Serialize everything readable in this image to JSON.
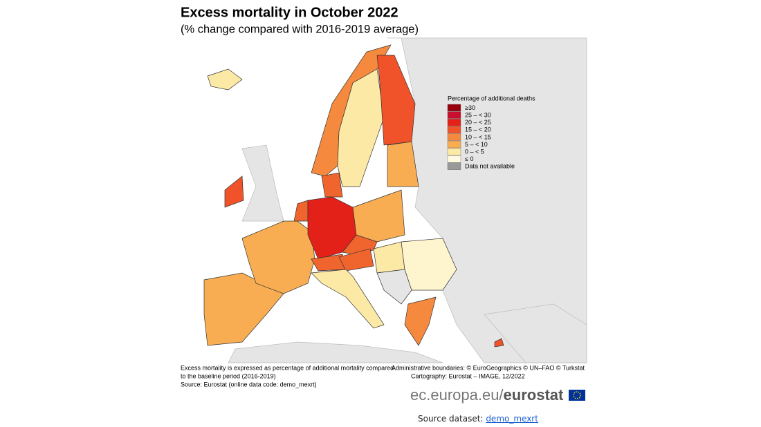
{
  "header": {
    "title": "Excess mortality in October 2022",
    "subtitle": "(% change compared with 2016-2019 average)"
  },
  "legend": {
    "title": "Percentage of additional deaths",
    "items": [
      "≥30",
      "25 – < 30",
      "20 – < 25",
      "15 – < 20",
      "10 – < 15",
      "5 – < 10",
      "0 – < 5",
      "≤ 0",
      "Data not available"
    ]
  },
  "notes": {
    "left": [
      "Excess mortality is expressed as percentage of additional mortality compared",
      "to the baseline period (2016-2019)",
      "Source: Eurostat (online data code: demo_mexrt)"
    ],
    "right": [
      "Administrative boundaries: © EuroGeographics © UN–FAO © Turkstat",
      "Cartography: Eurostat – IMAGE, 12/2022"
    ]
  },
  "logo": {
    "domain": "ec.europa.eu/",
    "brand": "eurostat"
  },
  "source": {
    "label": "Source dataset:",
    "link": "demo_mexrt"
  }
}
